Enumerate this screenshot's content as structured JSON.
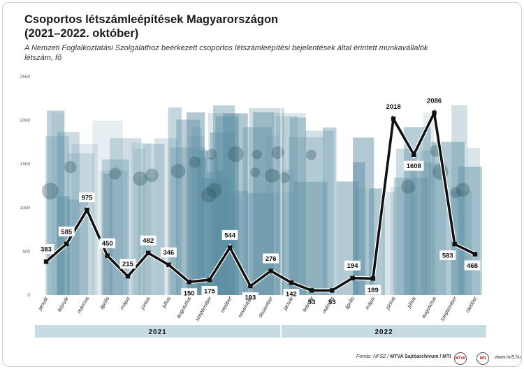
{
  "header": {
    "title_line1": "Csoportos létszámleépítések Magyarországon",
    "title_line2": "(2021–2022. október)",
    "subtitle": "A Nemzeti Foglalkoztatási Szolgálathoz beérkezett csoportos létszámleépítési bejelentések által érintett munkavállalók létszám, fő"
  },
  "footer": {
    "source_prefix": "Forrás: NFSZ / ",
    "source_bold": "MTVA Sajtóarchívum / MTI",
    "logo1": "MTVA",
    "logo2": "MTI",
    "site": "www.mi5.hu"
  },
  "chart_data": {
    "type": "line",
    "ylim": [
      0,
      2500
    ],
    "yticks": [
      0,
      500,
      1000,
      1500,
      2000,
      2500
    ],
    "categories": [
      "január",
      "február",
      "március",
      "április",
      "május",
      "június",
      "július",
      "augusztus",
      "szeptember",
      "október",
      "november",
      "december",
      "január",
      "február",
      "március",
      "április",
      "május",
      "június",
      "július",
      "augusztus",
      "szeptember",
      "október"
    ],
    "values": [
      383,
      585,
      975,
      450,
      215,
      482,
      346,
      150,
      175,
      544,
      103,
      276,
      142,
      53,
      53,
      194,
      189,
      2018,
      1608,
      2086,
      583,
      468
    ],
    "years": [
      {
        "label": "2021",
        "count": 12
      },
      {
        "label": "2022",
        "count": 10
      }
    ],
    "colors": {
      "line": "#111111",
      "photo_tint": "#5d8fa3",
      "year_band": "#c9dbe2"
    },
    "grid": false
  }
}
